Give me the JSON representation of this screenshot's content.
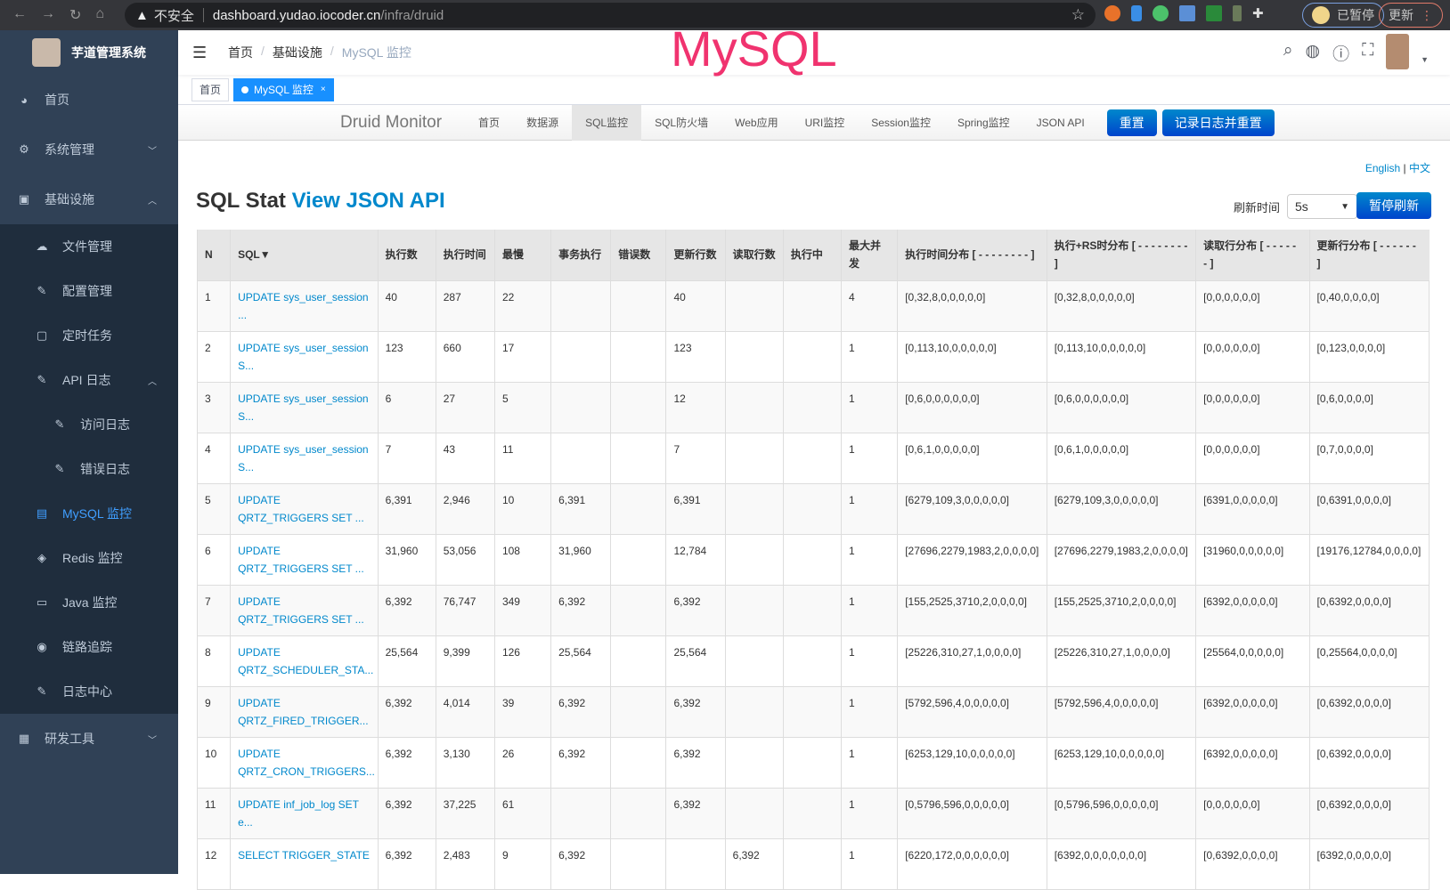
{
  "browser": {
    "insecure": "不安全",
    "host": "dashboard.yudao.iocoder.cn",
    "path": "/infra/druid",
    "paused": "已暂停",
    "update": "更新"
  },
  "sidebar": {
    "title": "芋道管理系统",
    "items": [
      {
        "label": "首页",
        "icon": "dashboard-icon"
      },
      {
        "label": "系统管理",
        "icon": "gear-icon"
      },
      {
        "label": "基础设施",
        "icon": "monitor-icon"
      },
      {
        "label": "文件管理",
        "icon": "upload-icon"
      },
      {
        "label": "配置管理",
        "icon": "edit-icon"
      },
      {
        "label": "定时任务",
        "icon": "job-icon"
      },
      {
        "label": "API 日志",
        "icon": "log-icon"
      },
      {
        "label": "访问日志",
        "icon": "log-icon"
      },
      {
        "label": "错误日志",
        "icon": "log-icon"
      },
      {
        "label": "MySQL 监控",
        "icon": "database-icon"
      },
      {
        "label": "Redis 监控",
        "icon": "redis-icon"
      },
      {
        "label": "Java 监控",
        "icon": "server-icon"
      },
      {
        "label": "链路追踪",
        "icon": "eye-icon"
      },
      {
        "label": "日志中心",
        "icon": "log-icon"
      },
      {
        "label": "研发工具",
        "icon": "toolbox-icon"
      }
    ]
  },
  "breadcrumb": [
    "首页",
    "基础设施",
    "MySQL 监控"
  ],
  "overlay": "MySQL",
  "tags": [
    "首页",
    "MySQL 监控"
  ],
  "druid": {
    "brand": "Druid Monitor",
    "nav": [
      "首页",
      "数据源",
      "SQL监控",
      "SQL防火墙",
      "Web应用",
      "URI监控",
      "Session监控",
      "Spring监控",
      "JSON API"
    ],
    "reset": "重置",
    "log_reset": "记录日志并重置",
    "lang_en": "English",
    "lang_sep": "|",
    "lang_zh": "中文",
    "title": "SQL Stat",
    "title_link": "View JSON API",
    "refresh_label": "刷新时间",
    "refresh_value": "5s",
    "pause": "暂停刷新"
  },
  "table": {
    "headers": [
      "N",
      "SQL▼",
      "执行数",
      "执行时间",
      "最慢",
      "事务执行",
      "错误数",
      "更新行数",
      "读取行数",
      "执行中",
      "最大并发",
      "执行时间分布 [ - - - - - - - - ]",
      "执行+RS时分布 [ - - - - - - - - ]",
      "读取行分布 [ - - - - - - ]",
      "更新行分布 [ - - - - - - ]"
    ],
    "rows": [
      [
        "1",
        "UPDATE sys_user_session ...",
        "40",
        "287",
        "22",
        "",
        "",
        "40",
        "",
        "",
        "4",
        "[0,32,8,0,0,0,0,0]",
        "[0,32,8,0,0,0,0,0]",
        "[0,0,0,0,0,0]",
        "[0,40,0,0,0,0]"
      ],
      [
        "2",
        "UPDATE sys_user_session S...",
        "123",
        "660",
        "17",
        "",
        "",
        "123",
        "",
        "",
        "1",
        "[0,113,10,0,0,0,0,0]",
        "[0,113,10,0,0,0,0,0]",
        "[0,0,0,0,0,0]",
        "[0,123,0,0,0,0]"
      ],
      [
        "3",
        "UPDATE sys_user_session S...",
        "6",
        "27",
        "5",
        "",
        "",
        "12",
        "",
        "",
        "1",
        "[0,6,0,0,0,0,0,0]",
        "[0,6,0,0,0,0,0,0]",
        "[0,0,0,0,0,0]",
        "[0,6,0,0,0,0]"
      ],
      [
        "4",
        "UPDATE sys_user_session S...",
        "7",
        "43",
        "11",
        "",
        "",
        "7",
        "",
        "",
        "1",
        "[0,6,1,0,0,0,0,0]",
        "[0,6,1,0,0,0,0,0]",
        "[0,0,0,0,0,0]",
        "[0,7,0,0,0,0]"
      ],
      [
        "5",
        "UPDATE QRTZ_TRIGGERS SET ...",
        "6,391",
        "2,946",
        "10",
        "6,391",
        "",
        "6,391",
        "",
        "",
        "1",
        "[6279,109,3,0,0,0,0,0]",
        "[6279,109,3,0,0,0,0,0]",
        "[6391,0,0,0,0,0]",
        "[0,6391,0,0,0,0]"
      ],
      [
        "6",
        "UPDATE QRTZ_TRIGGERS SET ...",
        "31,960",
        "53,056",
        "108",
        "31,960",
        "",
        "12,784",
        "",
        "",
        "1",
        "[27696,2279,1983,2,0,0,0,0]",
        "[27696,2279,1983,2,0,0,0,0]",
        "[31960,0,0,0,0,0]",
        "[19176,12784,0,0,0,0]"
      ],
      [
        "7",
        "UPDATE QRTZ_TRIGGERS SET ...",
        "6,392",
        "76,747",
        "349",
        "6,392",
        "",
        "6,392",
        "",
        "",
        "1",
        "[155,2525,3710,2,0,0,0,0]",
        "[155,2525,3710,2,0,0,0,0]",
        "[6392,0,0,0,0,0]",
        "[0,6392,0,0,0,0]"
      ],
      [
        "8",
        "UPDATE QRTZ_SCHEDULER_STA...",
        "25,564",
        "9,399",
        "126",
        "25,564",
        "",
        "25,564",
        "",
        "",
        "1",
        "[25226,310,27,1,0,0,0,0]",
        "[25226,310,27,1,0,0,0,0]",
        "[25564,0,0,0,0,0]",
        "[0,25564,0,0,0,0]"
      ],
      [
        "9",
        "UPDATE QRTZ_FIRED_TRIGGER...",
        "6,392",
        "4,014",
        "39",
        "6,392",
        "",
        "6,392",
        "",
        "",
        "1",
        "[5792,596,4,0,0,0,0,0]",
        "[5792,596,4,0,0,0,0,0]",
        "[6392,0,0,0,0,0]",
        "[0,6392,0,0,0,0]"
      ],
      [
        "10",
        "UPDATE QRTZ_CRON_TRIGGERS...",
        "6,392",
        "3,130",
        "26",
        "6,392",
        "",
        "6,392",
        "",
        "",
        "1",
        "[6253,129,10,0,0,0,0,0]",
        "[6253,129,10,0,0,0,0,0]",
        "[6392,0,0,0,0,0]",
        "[0,6392,0,0,0,0]"
      ],
      [
        "11",
        "UPDATE inf_job_log SET e...",
        "6,392",
        "37,225",
        "61",
        "",
        "",
        "6,392",
        "",
        "",
        "1",
        "[0,5796,596,0,0,0,0,0]",
        "[0,5796,596,0,0,0,0,0]",
        "[0,0,0,0,0,0]",
        "[0,6392,0,0,0,0]"
      ],
      [
        "12",
        "SELECT TRIGGER_STATE",
        "6,392",
        "2,483",
        "9",
        "6,392",
        "",
        "",
        "6,392",
        "",
        "1",
        "[6220,172,0,0,0,0,0,0]",
        "[6392,0,0,0,0,0,0,0]",
        "[0,6392,0,0,0,0]",
        "[6392,0,0,0,0,0]"
      ]
    ]
  }
}
